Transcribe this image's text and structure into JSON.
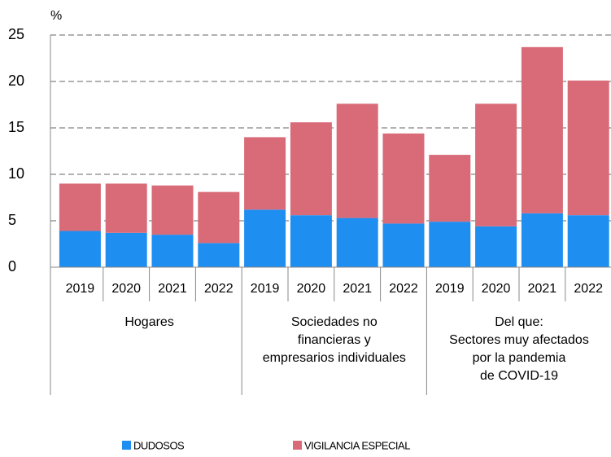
{
  "chart_data": {
    "type": "stacked_bar",
    "unit_label": "%",
    "categories": [
      "2019",
      "2020",
      "2021",
      "2022",
      "2019",
      "2020",
      "2021",
      "2022",
      "2019",
      "2020",
      "2021",
      "2022"
    ],
    "groups": [
      {
        "lines": [
          "Hogares"
        ],
        "size": 4
      },
      {
        "lines": [
          "Sociedades no",
          "financieras y",
          "empresarios individuales"
        ],
        "size": 4
      },
      {
        "lines": [
          "Del que:",
          "Sectores muy afectados",
          "por la pandemia",
          "de COVID-19"
        ],
        "size": 4
      }
    ],
    "series": [
      {
        "name": "DUDOSOS",
        "color": "#1f8ef1",
        "values": [
          3.9,
          3.7,
          3.5,
          2.6,
          6.2,
          5.6,
          5.3,
          4.7,
          4.9,
          4.4,
          5.8,
          5.6
        ]
      },
      {
        "name": "VIGILANCIA ESPECIAL",
        "color": "#d96b78",
        "values": [
          5.1,
          5.3,
          5.3,
          5.5,
          7.8,
          10.0,
          12.3,
          9.7,
          7.2,
          13.2,
          17.9,
          14.5
        ]
      }
    ],
    "ylim": [
      0,
      25
    ],
    "yticks": [
      0,
      5,
      10,
      15,
      20,
      25
    ],
    "grid": true
  }
}
